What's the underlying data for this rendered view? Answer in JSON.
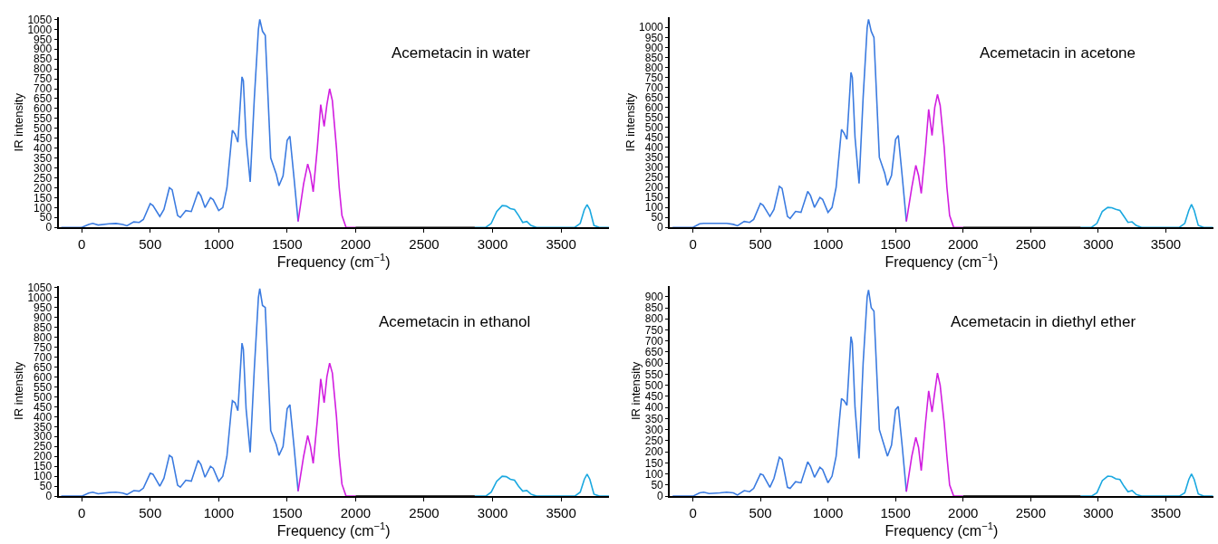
{
  "chart_data": [
    {
      "type": "line",
      "title": "Acemetacin in water",
      "xlabel": "Frequency (cm$^{−1}$)",
      "ylabel": "IR intensity",
      "xlim": [
        -170,
        3850
      ],
      "ylim": [
        0,
        1060
      ],
      "xticks": [
        0,
        500,
        1000,
        1500,
        2000,
        2500,
        3000,
        3500
      ],
      "yticks": [
        0,
        50,
        100,
        150,
        200,
        250,
        300,
        350,
        400,
        450,
        500,
        550,
        600,
        650,
        700,
        750,
        800,
        850,
        900,
        950,
        1000,
        1050
      ],
      "line_style": "solid",
      "series": [
        {
          "color": "#3b7be0",
          "x": [
            -150,
            0,
            50,
            80,
            120,
            200,
            250,
            300,
            330,
            380,
            420,
            450,
            500,
            520,
            570,
            600,
            640,
            660,
            700,
            720,
            760,
            800,
            850,
            870,
            900,
            940,
            960,
            1000,
            1030,
            1060,
            1090,
            1100,
            1120,
            1140,
            1170,
            1180,
            1200,
            1230,
            1260,
            1290,
            1300,
            1320,
            1340,
            1380,
            1420,
            1440,
            1470,
            1500,
            1520,
            1550,
            1580
          ],
          "values": [
            0,
            0,
            15,
            20,
            12,
            18,
            20,
            15,
            8,
            28,
            25,
            40,
            120,
            110,
            55,
            90,
            200,
            190,
            60,
            50,
            85,
            80,
            180,
            160,
            100,
            150,
            140,
            85,
            100,
            200,
            420,
            490,
            470,
            430,
            760,
            740,
            450,
            230,
            650,
            1000,
            1050,
            990,
            970,
            350,
            270,
            210,
            260,
            440,
            460,
            250,
            30
          ]
        },
        {
          "color": "#d21ee0",
          "x": [
            1580,
            1620,
            1650,
            1670,
            1690,
            1720,
            1745,
            1770,
            1790,
            1810,
            1830,
            1860,
            1880,
            1900,
            1930,
            2000
          ],
          "values": [
            30,
            220,
            320,
            270,
            180,
            400,
            620,
            510,
            620,
            700,
            640,
            400,
            200,
            60,
            0,
            0
          ]
        },
        {
          "color": "#000000",
          "x": [
            2000,
            2870
          ],
          "values": [
            0,
            0
          ]
        },
        {
          "color": "#1aa8e0",
          "x": [
            2870,
            2950,
            2990,
            3030,
            3070,
            3100,
            3130,
            3160,
            3190,
            3220,
            3250,
            3280,
            3320,
            3400,
            3520,
            3600,
            3640,
            3670,
            3690,
            3710,
            3740,
            3780,
            3850
          ],
          "values": [
            0,
            0,
            20,
            80,
            110,
            108,
            95,
            90,
            60,
            25,
            30,
            10,
            0,
            0,
            0,
            0,
            20,
            90,
            115,
            90,
            10,
            0,
            0
          ]
        }
      ]
    },
    {
      "type": "line",
      "title": "Acemetacin in acetone",
      "xlabel": "Frequency (cm$^{−1}$)",
      "ylabel": "IR intensity",
      "xlim": [
        -170,
        3850
      ],
      "ylim": [
        0,
        1050
      ],
      "xticks": [
        0,
        500,
        1000,
        1500,
        2000,
        2500,
        3000,
        3500
      ],
      "yticks": [
        0,
        50,
        100,
        150,
        200,
        250,
        300,
        350,
        400,
        450,
        500,
        550,
        600,
        650,
        700,
        750,
        800,
        850,
        900,
        950,
        1000
      ],
      "line_style": "solid",
      "series": [
        {
          "color": "#3b7be0",
          "x": [
            -150,
            0,
            50,
            80,
            120,
            200,
            250,
            300,
            330,
            380,
            420,
            450,
            500,
            520,
            570,
            600,
            640,
            660,
            700,
            720,
            760,
            800,
            850,
            870,
            900,
            940,
            960,
            1000,
            1030,
            1060,
            1090,
            1100,
            1120,
            1140,
            1170,
            1180,
            1200,
            1230,
            1260,
            1290,
            1300,
            1320,
            1340,
            1380,
            1420,
            1440,
            1470,
            1500,
            1520,
            1550,
            1580
          ],
          "values": [
            0,
            0,
            18,
            20,
            20,
            20,
            20,
            15,
            8,
            30,
            25,
            40,
            120,
            110,
            55,
            90,
            205,
            195,
            55,
            45,
            80,
            75,
            180,
            160,
            100,
            150,
            140,
            75,
            100,
            200,
            420,
            490,
            470,
            440,
            775,
            750,
            450,
            220,
            650,
            1000,
            1040,
            980,
            950,
            350,
            270,
            210,
            260,
            440,
            460,
            250,
            30
          ]
        },
        {
          "color": "#d21ee0",
          "x": [
            1580,
            1620,
            1650,
            1670,
            1690,
            1720,
            1745,
            1770,
            1790,
            1810,
            1830,
            1860,
            1880,
            1900,
            1930,
            2000
          ],
          "values": [
            30,
            200,
            310,
            260,
            170,
            380,
            590,
            460,
            600,
            665,
            610,
            400,
            200,
            60,
            0,
            0
          ]
        },
        {
          "color": "#000000",
          "x": [
            2000,
            2870
          ],
          "values": [
            0,
            0
          ]
        },
        {
          "color": "#1aa8e0",
          "x": [
            2870,
            2950,
            2990,
            3030,
            3070,
            3100,
            3130,
            3160,
            3190,
            3220,
            3250,
            3280,
            3320,
            3400,
            3520,
            3600,
            3640,
            3670,
            3690,
            3710,
            3740,
            3780,
            3850
          ],
          "values": [
            0,
            0,
            20,
            80,
            100,
            98,
            90,
            85,
            55,
            25,
            28,
            10,
            0,
            0,
            0,
            0,
            20,
            85,
            115,
            85,
            10,
            0,
            0
          ]
        }
      ]
    },
    {
      "type": "line",
      "title": "Acemetacin in ethanol",
      "xlabel": "Frequency (cm$^{−1}$)",
      "ylabel": "IR intensity",
      "xlim": [
        -170,
        3850
      ],
      "ylim": [
        0,
        1060
      ],
      "xticks": [
        0,
        500,
        1000,
        1500,
        2000,
        2500,
        3000,
        3500
      ],
      "yticks": [
        0,
        50,
        100,
        150,
        200,
        250,
        300,
        350,
        400,
        450,
        500,
        550,
        600,
        650,
        700,
        750,
        800,
        850,
        900,
        950,
        1000,
        1050
      ],
      "line_style": "solid",
      "series": [
        {
          "color": "#3b7be0",
          "x": [
            -150,
            0,
            50,
            80,
            120,
            200,
            250,
            300,
            330,
            380,
            420,
            450,
            500,
            520,
            570,
            600,
            640,
            660,
            700,
            720,
            760,
            800,
            850,
            870,
            900,
            940,
            960,
            1000,
            1030,
            1060,
            1090,
            1100,
            1120,
            1140,
            1170,
            1180,
            1200,
            1230,
            1260,
            1290,
            1300,
            1320,
            1340,
            1380,
            1420,
            1440,
            1470,
            1500,
            1520,
            1550,
            1580
          ],
          "values": [
            0,
            0,
            15,
            20,
            12,
            18,
            20,
            15,
            8,
            28,
            25,
            40,
            115,
            110,
            50,
            90,
            205,
            195,
            55,
            45,
            80,
            75,
            180,
            160,
            95,
            150,
            140,
            75,
            100,
            200,
            420,
            480,
            470,
            430,
            770,
            740,
            440,
            220,
            640,
            1000,
            1045,
            960,
            950,
            330,
            260,
            205,
            250,
            440,
            460,
            250,
            25
          ]
        },
        {
          "color": "#d21ee0",
          "x": [
            1580,
            1620,
            1650,
            1670,
            1690,
            1720,
            1745,
            1770,
            1790,
            1810,
            1830,
            1860,
            1880,
            1900,
            1930,
            2000
          ],
          "values": [
            25,
            200,
            305,
            250,
            165,
            380,
            590,
            470,
            600,
            670,
            620,
            400,
            200,
            60,
            0,
            0
          ]
        },
        {
          "color": "#000000",
          "x": [
            2000,
            2870
          ],
          "values": [
            0,
            0
          ]
        },
        {
          "color": "#1aa8e0",
          "x": [
            2870,
            2950,
            2990,
            3030,
            3070,
            3100,
            3130,
            3160,
            3190,
            3220,
            3250,
            3280,
            3320,
            3400,
            3520,
            3600,
            3640,
            3670,
            3690,
            3710,
            3740,
            3780,
            3850
          ],
          "values": [
            0,
            0,
            20,
            75,
            100,
            98,
            85,
            80,
            50,
            25,
            28,
            10,
            0,
            0,
            0,
            0,
            20,
            85,
            110,
            85,
            10,
            0,
            0
          ]
        }
      ]
    },
    {
      "type": "line",
      "title": "Acemetacin in diethyl ether",
      "xlabel": "Frequency (cm$^{−1}$)",
      "ylabel": "IR intensity",
      "xlim": [
        -170,
        3850
      ],
      "ylim": [
        0,
        950
      ],
      "xticks": [
        0,
        500,
        1000,
        1500,
        2000,
        2500,
        3000,
        3500
      ],
      "yticks": [
        0,
        50,
        100,
        150,
        200,
        250,
        300,
        350,
        400,
        450,
        500,
        550,
        600,
        650,
        700,
        750,
        800,
        850,
        900
      ],
      "line_style": "solid",
      "series": [
        {
          "color": "#3b7be0",
          "x": [
            -150,
            0,
            50,
            80,
            120,
            200,
            250,
            300,
            330,
            380,
            420,
            450,
            500,
            520,
            570,
            600,
            640,
            660,
            700,
            720,
            760,
            800,
            850,
            870,
            900,
            940,
            960,
            1000,
            1030,
            1060,
            1090,
            1100,
            1120,
            1140,
            1170,
            1180,
            1200,
            1230,
            1260,
            1290,
            1300,
            1320,
            1340,
            1380,
            1420,
            1440,
            1470,
            1500,
            1520,
            1550,
            1580
          ],
          "values": [
            0,
            0,
            15,
            18,
            12,
            15,
            18,
            15,
            5,
            25,
            20,
            35,
            100,
            95,
            40,
            80,
            175,
            165,
            40,
            35,
            65,
            60,
            155,
            135,
            85,
            130,
            120,
            60,
            90,
            180,
            380,
            440,
            430,
            410,
            720,
            690,
            400,
            170,
            600,
            900,
            930,
            850,
            835,
            300,
            220,
            180,
            230,
            390,
            405,
            220,
            20
          ]
        },
        {
          "color": "#d21ee0",
          "x": [
            1580,
            1620,
            1650,
            1670,
            1690,
            1720,
            1745,
            1770,
            1790,
            1810,
            1830,
            1860,
            1880,
            1900,
            1930,
            2000
          ],
          "values": [
            20,
            180,
            265,
            220,
            115,
            320,
            475,
            380,
            470,
            555,
            500,
            330,
            180,
            50,
            0,
            0
          ]
        },
        {
          "color": "#000000",
          "x": [
            2000,
            2870
          ],
          "values": [
            0,
            0
          ]
        },
        {
          "color": "#1aa8e0",
          "x": [
            2870,
            2950,
            2990,
            3030,
            3070,
            3100,
            3130,
            3160,
            3190,
            3220,
            3250,
            3280,
            3320,
            3400,
            3520,
            3600,
            3640,
            3670,
            3690,
            3710,
            3740,
            3780,
            3850
          ],
          "values": [
            0,
            0,
            15,
            70,
            90,
            88,
            78,
            75,
            45,
            20,
            25,
            8,
            0,
            0,
            0,
            0,
            15,
            75,
            100,
            75,
            10,
            0,
            0
          ]
        }
      ]
    }
  ]
}
